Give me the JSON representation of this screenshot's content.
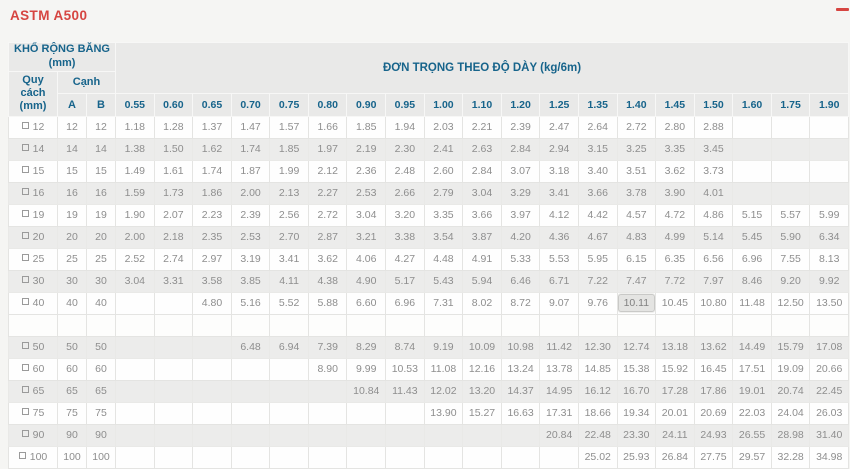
{
  "page": {
    "title": "ASTM A500"
  },
  "colors": {
    "accent-red": "#d64541",
    "header-blue": "#17648b",
    "row-alt": "#ececeb"
  },
  "icons": {
    "collapse_icon": "minus",
    "row_marker_icon": "square-outline"
  },
  "table": {
    "header": {
      "strip_width_line1": "KHỔ RỘNG BĂNG",
      "strip_width_line2": "(mm)",
      "unit_weight_label": "ĐƠN TRỌNG THEO ĐỘ DÀY (kg/6m)",
      "spec_label": "Quy cách (mm)",
      "edge_label": "Cạnh",
      "col_a": "A",
      "col_b": "B",
      "thicknesses": [
        "0.55",
        "0.60",
        "0.65",
        "0.70",
        "0.75",
        "0.80",
        "0.90",
        "0.95",
        "1.00",
        "1.10",
        "1.20",
        "1.25",
        "1.35",
        "1.40",
        "1.45",
        "1.50",
        "1.60",
        "1.75",
        "1.90"
      ]
    },
    "rows": [
      {
        "size": "12",
        "a": "12",
        "b": "12",
        "values": [
          "1.18",
          "1.28",
          "1.37",
          "1.47",
          "1.57",
          "1.66",
          "1.85",
          "1.94",
          "2.03",
          "2.21",
          "2.39",
          "2.47",
          "2.64",
          "2.72",
          "2.80",
          "2.88",
          "",
          "",
          ""
        ]
      },
      {
        "size": "14",
        "a": "14",
        "b": "14",
        "values": [
          "1.38",
          "1.50",
          "1.62",
          "1.74",
          "1.85",
          "1.97",
          "2.19",
          "2.30",
          "2.41",
          "2.63",
          "2.84",
          "2.94",
          "3.15",
          "3.25",
          "3.35",
          "3.45",
          "",
          "",
          ""
        ]
      },
      {
        "size": "15",
        "a": "15",
        "b": "15",
        "values": [
          "1.49",
          "1.61",
          "1.74",
          "1.87",
          "1.99",
          "2.12",
          "2.36",
          "2.48",
          "2.60",
          "2.84",
          "3.07",
          "3.18",
          "3.40",
          "3.51",
          "3.62",
          "3.73",
          "",
          "",
          ""
        ]
      },
      {
        "size": "16",
        "a": "16",
        "b": "16",
        "values": [
          "1.59",
          "1.73",
          "1.86",
          "2.00",
          "2.13",
          "2.27",
          "2.53",
          "2.66",
          "2.79",
          "3.04",
          "3.29",
          "3.41",
          "3.66",
          "3.78",
          "3.90",
          "4.01",
          "",
          "",
          ""
        ]
      },
      {
        "size": "19",
        "a": "19",
        "b": "19",
        "values": [
          "1.90",
          "2.07",
          "2.23",
          "2.39",
          "2.56",
          "2.72",
          "3.04",
          "3.20",
          "3.35",
          "3.66",
          "3.97",
          "4.12",
          "4.42",
          "4.57",
          "4.72",
          "4.86",
          "5.15",
          "5.57",
          "5.99"
        ]
      },
      {
        "size": "20",
        "a": "20",
        "b": "20",
        "values": [
          "2.00",
          "2.18",
          "2.35",
          "2.53",
          "2.70",
          "2.87",
          "3.21",
          "3.38",
          "3.54",
          "3.87",
          "4.20",
          "4.36",
          "4.67",
          "4.83",
          "4.99",
          "5.14",
          "5.45",
          "5.90",
          "6.34"
        ]
      },
      {
        "size": "25",
        "a": "25",
        "b": "25",
        "values": [
          "2.52",
          "2.74",
          "2.97",
          "3.19",
          "3.41",
          "3.62",
          "4.06",
          "4.27",
          "4.48",
          "4.91",
          "5.33",
          "5.53",
          "5.95",
          "6.15",
          "6.35",
          "6.56",
          "6.96",
          "7.55",
          "8.13"
        ]
      },
      {
        "size": "30",
        "a": "30",
        "b": "30",
        "values": [
          "3.04",
          "3.31",
          "3.58",
          "3.85",
          "4.11",
          "4.38",
          "4.90",
          "5.17",
          "5.43",
          "5.94",
          "6.46",
          "6.71",
          "7.22",
          "7.47",
          "7.72",
          "7.97",
          "8.46",
          "9.20",
          "9.92"
        ]
      },
      {
        "size": "40",
        "a": "40",
        "b": "40",
        "highlight_thickness": "1.40",
        "values": [
          "",
          "",
          "4.80",
          "5.16",
          "5.52",
          "5.88",
          "6.60",
          "6.96",
          "7.31",
          "8.02",
          "8.72",
          "9.07",
          "9.76",
          "10.11",
          "10.45",
          "10.80",
          "11.48",
          "12.50",
          "13.50"
        ]
      },
      {
        "spacer": true
      },
      {
        "size": "50",
        "a": "50",
        "b": "50",
        "values": [
          "",
          "",
          "",
          "6.48",
          "6.94",
          "7.39",
          "8.29",
          "8.74",
          "9.19",
          "10.09",
          "10.98",
          "11.42",
          "12.30",
          "12.74",
          "13.18",
          "13.62",
          "14.49",
          "15.79",
          "17.08"
        ]
      },
      {
        "size": "60",
        "a": "60",
        "b": "60",
        "values": [
          "",
          "",
          "",
          "",
          "",
          "8.90",
          "9.99",
          "10.53",
          "11.08",
          "12.16",
          "13.24",
          "13.78",
          "14.85",
          "15.38",
          "15.92",
          "16.45",
          "17.51",
          "19.09",
          "20.66"
        ]
      },
      {
        "size": "65",
        "a": "65",
        "b": "65",
        "values": [
          "",
          "",
          "",
          "",
          "",
          "",
          "10.84",
          "11.43",
          "12.02",
          "13.20",
          "14.37",
          "14.95",
          "16.12",
          "16.70",
          "17.28",
          "17.86",
          "19.01",
          "20.74",
          "22.45"
        ]
      },
      {
        "size": "75",
        "a": "75",
        "b": "75",
        "values": [
          "",
          "",
          "",
          "",
          "",
          "",
          "",
          "",
          "13.90",
          "15.27",
          "16.63",
          "17.31",
          "18.66",
          "19.34",
          "20.01",
          "20.69",
          "22.03",
          "24.04",
          "26.03"
        ]
      },
      {
        "size": "90",
        "a": "90",
        "b": "90",
        "values": [
          "",
          "",
          "",
          "",
          "",
          "",
          "",
          "",
          "",
          "",
          "",
          "20.84",
          "22.48",
          "23.30",
          "24.11",
          "24.93",
          "26.55",
          "28.98",
          "31.40"
        ]
      },
      {
        "size": "100",
        "a": "100",
        "b": "100",
        "values": [
          "",
          "",
          "",
          "",
          "",
          "",
          "",
          "",
          "",
          "",
          "",
          "",
          "25.02",
          "25.93",
          "26.84",
          "27.75",
          "29.57",
          "32.28",
          "34.98"
        ]
      }
    ]
  }
}
